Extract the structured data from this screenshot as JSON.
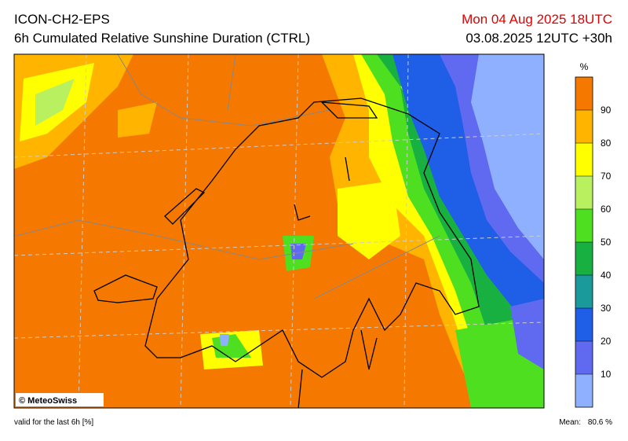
{
  "header": {
    "model": "ICON-CH2-EPS",
    "product": "6h Cumulated Relative Sunshine Duration (CTRL)",
    "valid_time": "Mon 04 Aug 2025 18UTC",
    "run": "03.08.2025 12UTC +30h"
  },
  "colorbar": {
    "unit": "%",
    "ticks": [
      10,
      20,
      30,
      40,
      50,
      60,
      70,
      80,
      90
    ],
    "colors": [
      "#8fb0ff",
      "#5f6af0",
      "#1f5fe8",
      "#1a9a9a",
      "#18b040",
      "#4ee020",
      "#b8f060",
      "#ffff00",
      "#ffb400",
      "#f57800"
    ]
  },
  "footer": {
    "validity": "valid for the last 6h [%]",
    "mean_label": "Mean:",
    "mean_value": "80.6 %",
    "credit": "© MeteoSwiss"
  }
}
